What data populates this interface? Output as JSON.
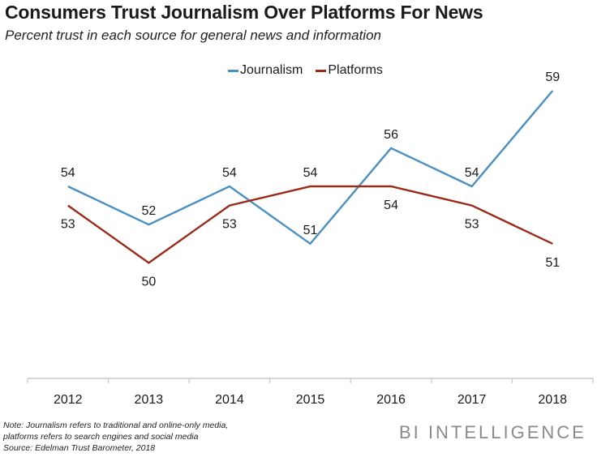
{
  "header": {
    "title": "Consumers Trust Journalism Over Platforms For News",
    "subtitle": "Percent trust in each source for general news and information"
  },
  "footer": {
    "note_lines": [
      "Note: Journalism refers to traditional and online-only media,",
      "platforms refers to search engines and social media",
      "Source: Edelman Trust Barometer, 2018"
    ],
    "brand": "BI INTELLIGENCE"
  },
  "chart_data": {
    "type": "line",
    "title": "Consumers Trust Journalism Over Platforms For News",
    "subtitle": "Percent trust in each source for general news and information",
    "xlabel": "",
    "ylabel": "",
    "categories": [
      "2012",
      "2013",
      "2014",
      "2015",
      "2016",
      "2017",
      "2018"
    ],
    "series": [
      {
        "name": "Journalism",
        "color": "#4a90c2",
        "values": [
          54,
          52,
          54,
          51,
          56,
          54,
          59
        ],
        "label_position": [
          "above",
          "above",
          "above",
          "above",
          "above",
          "above",
          "above"
        ]
      },
      {
        "name": "Platforms",
        "color": "#9b2a1a",
        "values": [
          53,
          50,
          53,
          54,
          54,
          53,
          51
        ],
        "label_position": [
          "below",
          "below",
          "below",
          "above",
          "below",
          "below",
          "below"
        ]
      }
    ],
    "ylim": [
      43,
      59.5
    ],
    "grid": false,
    "y_axis_visible": false,
    "legend": "top-center",
    "data_labels": true
  }
}
